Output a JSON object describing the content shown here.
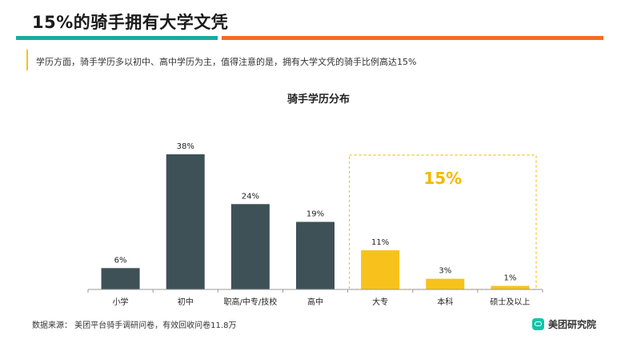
{
  "header": {
    "title": "15%的骑手拥有大学文凭",
    "subtitle": "学历方面，骑手学历多以初中、高中学历为主，值得注意的是，拥有大学文凭的骑手比例高达15%"
  },
  "footer": {
    "source": "数据来源： 美团平台骑手调研问卷，有效回收问卷11.8万",
    "brand": "美团研究院"
  },
  "colors": {
    "teal": "#1aa9a3",
    "orange": "#f26d21",
    "dark_bar": "#3e5157",
    "highlight_bar": "#f7c21b",
    "highlight_text": "#f5b800",
    "axis": "#999999"
  },
  "chart_data": {
    "type": "bar",
    "title": "骑手学历分布",
    "xlabel": "",
    "ylabel": "",
    "ylim": [
      0,
      38
    ],
    "categories": [
      "小学",
      "初中",
      "职高/中专/技校",
      "高中",
      "大专",
      "本科",
      "硕士及以上"
    ],
    "values": [
      6,
      38,
      24,
      19,
      11,
      3,
      1
    ],
    "value_labels": [
      "6%",
      "38%",
      "24%",
      "19%",
      "11%",
      "3%",
      "1%"
    ],
    "highlighted": [
      false,
      false,
      false,
      false,
      true,
      true,
      true
    ],
    "highlight_group_label": "15%",
    "grid": false
  }
}
